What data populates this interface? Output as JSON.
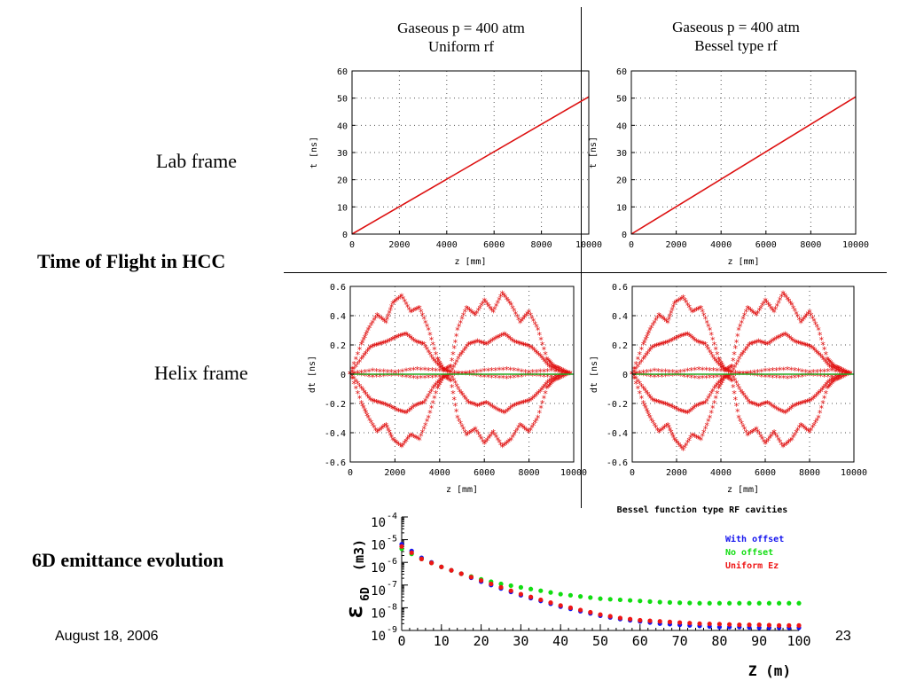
{
  "slide": {
    "labels": {
      "lab_frame": "Lab frame",
      "time_of_flight": "Time of Flight in HCC",
      "helix_frame": "Helix frame",
      "emittance": "6D emittance evolution"
    },
    "titles": {
      "left_line1": "Gaseous p = 400 atm",
      "left_line2": "Uniform rf",
      "right_line1": "Gaseous p = 400 atm",
      "right_line2": "Bessel type rf"
    },
    "footer": {
      "date": "August 18, 2006",
      "page_number": "23"
    }
  },
  "chart_data": [
    {
      "id": "lab-uniform",
      "type": "line",
      "xlabel": "z [mm]",
      "ylabel": "t [ns]",
      "xlim": [
        0,
        10000
      ],
      "ylim": [
        0,
        60
      ],
      "xticks": [
        0,
        2000,
        4000,
        6000,
        8000,
        10000
      ],
      "yticks": [
        0,
        10,
        20,
        30,
        40,
        50,
        60
      ],
      "grid": true,
      "color": "#dd1111",
      "x": [
        0,
        10000
      ],
      "y": [
        0,
        50.5
      ]
    },
    {
      "id": "lab-bessel",
      "type": "line",
      "xlabel": "z [mm]",
      "ylabel": "t [ns]",
      "xlim": [
        0,
        10000
      ],
      "ylim": [
        0,
        60
      ],
      "xticks": [
        0,
        2000,
        4000,
        6000,
        8000,
        10000
      ],
      "yticks": [
        0,
        10,
        20,
        30,
        40,
        50,
        60
      ],
      "grid": true,
      "color": "#dd1111",
      "x": [
        0,
        10000
      ],
      "y": [
        0,
        50.5
      ]
    },
    {
      "id": "helix-uniform",
      "type": "scatter",
      "xlabel": "z [mm]",
      "ylabel": "dt [ns]",
      "xlim": [
        0,
        10000
      ],
      "ylim": [
        -0.6,
        0.6
      ],
      "xticks": [
        0,
        2000,
        4000,
        6000,
        8000,
        10000
      ],
      "yticks": [
        -0.6,
        -0.4,
        -0.2,
        0,
        0.2,
        0.4,
        0.6
      ],
      "grid": true,
      "series": [
        {
          "color": "#e01010",
          "x": [
            0,
            500,
            800,
            1200,
            1600,
            1900,
            2300,
            2700,
            3100,
            3500,
            3900,
            4200,
            4500,
            4800,
            5200,
            5600,
            6000,
            6400,
            6800,
            7200,
            7600,
            8000,
            8400,
            8800,
            9100,
            9400,
            9800
          ],
          "values": [
            0,
            0.2,
            0.3,
            0.4,
            0.35,
            0.48,
            0.53,
            0.42,
            0.45,
            0.3,
            0.1,
            0.02,
            0.05,
            0.3,
            0.45,
            0.4,
            0.5,
            0.42,
            0.55,
            0.47,
            0.35,
            0.42,
            0.3,
            0.1,
            0.05,
            0.03,
            0.0
          ]
        },
        {
          "color": "#e01010",
          "x": [
            0,
            500,
            900,
            1300,
            1700,
            2100,
            2500,
            2900,
            3300,
            3700,
            4100,
            4500,
            4900,
            5300,
            5700,
            6100,
            6500,
            6900,
            7300,
            7700,
            8100,
            8500,
            8900,
            9300,
            9800
          ],
          "values": [
            0,
            0.1,
            0.18,
            0.2,
            0.22,
            0.25,
            0.27,
            0.22,
            0.2,
            0.1,
            0.03,
            0.01,
            0.12,
            0.2,
            0.22,
            0.2,
            0.24,
            0.27,
            0.22,
            0.2,
            0.18,
            0.12,
            0.05,
            0.02,
            0.0
          ]
        },
        {
          "color": "#e01010",
          "x": [
            0,
            1000,
            2000,
            3000,
            4000,
            5000,
            6000,
            7000,
            8000,
            9000,
            10000
          ],
          "values": [
            0,
            0.02,
            0.01,
            0.03,
            0.02,
            0.0,
            0.02,
            0.03,
            0.01,
            0.02,
            0.0
          ]
        },
        {
          "color": "#e01010",
          "x": [
            0,
            1000,
            2000,
            3000,
            4000,
            5000,
            6000,
            7000,
            8000,
            9000,
            10000
          ],
          "values": [
            0,
            -0.02,
            -0.01,
            -0.03,
            -0.02,
            0.0,
            -0.02,
            -0.03,
            -0.01,
            -0.02,
            0.0
          ]
        },
        {
          "color": "#e01010",
          "x": [
            0,
            500,
            900,
            1300,
            1700,
            2100,
            2500,
            2900,
            3300,
            3700,
            4100,
            4500,
            4900,
            5300,
            5700,
            6100,
            6500,
            6900,
            7300,
            7700,
            8100,
            8500,
            8900,
            9300,
            9800
          ],
          "values": [
            0,
            -0.1,
            -0.18,
            -0.2,
            -0.22,
            -0.25,
            -0.27,
            -0.22,
            -0.2,
            -0.1,
            -0.03,
            -0.01,
            -0.12,
            -0.2,
            -0.22,
            -0.2,
            -0.24,
            -0.27,
            -0.22,
            -0.2,
            -0.18,
            -0.12,
            -0.05,
            -0.02,
            0.0
          ]
        },
        {
          "color": "#e01010",
          "x": [
            0,
            500,
            800,
            1200,
            1600,
            1900,
            2300,
            2700,
            3100,
            3500,
            3900,
            4200,
            4500,
            4800,
            5200,
            5600,
            6000,
            6400,
            6800,
            7200,
            7600,
            8000,
            8400,
            8800,
            9100,
            9400,
            9800
          ],
          "values": [
            0,
            -0.2,
            -0.3,
            -0.4,
            -0.35,
            -0.45,
            -0.5,
            -0.42,
            -0.45,
            -0.3,
            -0.1,
            -0.02,
            -0.05,
            -0.3,
            -0.42,
            -0.38,
            -0.48,
            -0.4,
            -0.5,
            -0.45,
            -0.35,
            -0.4,
            -0.3,
            -0.1,
            -0.05,
            -0.03,
            0.0
          ]
        },
        {
          "color": "#22aa22",
          "x": [
            0,
            10000
          ],
          "values": [
            0,
            0
          ]
        }
      ]
    },
    {
      "id": "helix-bessel",
      "type": "scatter",
      "xlabel": "z [mm]",
      "ylabel": "dt [ns]",
      "xlim": [
        0,
        10000
      ],
      "ylim": [
        -0.6,
        0.6
      ],
      "xticks": [
        0,
        2000,
        4000,
        6000,
        8000,
        10000
      ],
      "yticks": [
        -0.6,
        -0.4,
        -0.2,
        0,
        0.2,
        0.4,
        0.6
      ],
      "grid": true,
      "series": [
        {
          "color": "#e01010",
          "x": [
            0,
            500,
            800,
            1200,
            1600,
            1900,
            2300,
            2700,
            3100,
            3500,
            3900,
            4200,
            4500,
            4800,
            5200,
            5600,
            6000,
            6400,
            6800,
            7200,
            7600,
            8000,
            8400,
            8800,
            9100,
            9400,
            9800
          ],
          "values": [
            0,
            0.2,
            0.3,
            0.4,
            0.35,
            0.48,
            0.52,
            0.42,
            0.45,
            0.3,
            0.1,
            0.02,
            0.05,
            0.3,
            0.45,
            0.4,
            0.5,
            0.42,
            0.55,
            0.47,
            0.35,
            0.42,
            0.3,
            0.1,
            0.05,
            0.03,
            0.0
          ]
        },
        {
          "color": "#e01010",
          "x": [
            0,
            500,
            900,
            1300,
            1700,
            2100,
            2500,
            2900,
            3300,
            3700,
            4100,
            4500,
            4900,
            5300,
            5700,
            6100,
            6500,
            6900,
            7300,
            7700,
            8100,
            8500,
            8900,
            9300,
            9800
          ],
          "values": [
            0,
            0.1,
            0.18,
            0.2,
            0.22,
            0.25,
            0.27,
            0.22,
            0.2,
            0.1,
            0.03,
            0.01,
            0.12,
            0.2,
            0.22,
            0.2,
            0.24,
            0.27,
            0.22,
            0.2,
            0.18,
            0.12,
            0.05,
            0.02,
            0.0
          ]
        },
        {
          "color": "#e01010",
          "x": [
            0,
            1000,
            2000,
            3000,
            4000,
            5000,
            6000,
            7000,
            8000,
            9000,
            10000
          ],
          "values": [
            0,
            0.02,
            0.01,
            0.03,
            0.02,
            0.0,
            0.02,
            0.03,
            0.01,
            0.02,
            0.0
          ]
        },
        {
          "color": "#e01010",
          "x": [
            0,
            1000,
            2000,
            3000,
            4000,
            5000,
            6000,
            7000,
            8000,
            9000,
            10000
          ],
          "values": [
            0,
            -0.02,
            -0.01,
            -0.03,
            -0.02,
            0.0,
            -0.02,
            -0.03,
            -0.01,
            -0.02,
            0.0
          ]
        },
        {
          "color": "#e01010",
          "x": [
            0,
            500,
            900,
            1300,
            1700,
            2100,
            2500,
            2900,
            3300,
            3700,
            4100,
            4500,
            4900,
            5300,
            5700,
            6100,
            6500,
            6900,
            7300,
            7700,
            8100,
            8500,
            8900,
            9300,
            9800
          ],
          "values": [
            0,
            -0.1,
            -0.18,
            -0.2,
            -0.22,
            -0.25,
            -0.27,
            -0.22,
            -0.2,
            -0.1,
            -0.03,
            -0.01,
            -0.12,
            -0.2,
            -0.22,
            -0.2,
            -0.24,
            -0.27,
            -0.22,
            -0.2,
            -0.18,
            -0.12,
            -0.05,
            -0.02,
            0.0
          ]
        },
        {
          "color": "#e01010",
          "x": [
            0,
            500,
            800,
            1200,
            1600,
            1900,
            2300,
            2700,
            3100,
            3500,
            3900,
            4200,
            4500,
            4800,
            5200,
            5600,
            6000,
            6400,
            6800,
            7200,
            7600,
            8000,
            8400,
            8800,
            9100,
            9400,
            9800
          ],
          "values": [
            0,
            -0.2,
            -0.3,
            -0.4,
            -0.35,
            -0.45,
            -0.52,
            -0.42,
            -0.45,
            -0.3,
            -0.1,
            -0.02,
            -0.05,
            -0.3,
            -0.42,
            -0.38,
            -0.48,
            -0.4,
            -0.5,
            -0.45,
            -0.35,
            -0.4,
            -0.3,
            -0.1,
            -0.05,
            -0.03,
            0.0
          ]
        },
        {
          "color": "#22aa22",
          "x": [
            0,
            10000
          ],
          "values": [
            0,
            0
          ]
        }
      ]
    },
    {
      "id": "emittance",
      "type": "scatter",
      "title": "Bessel function type RF cavities",
      "xlabel": "Z (m)",
      "ylabel": "ε6D (m3)",
      "ylabel_main": "ε",
      "ylabel_sub": "6D",
      "ylabel_unit": "(m3)",
      "log_y": true,
      "xlim": [
        0,
        100
      ],
      "ylim": [
        -9,
        -4
      ],
      "xticks": [
        0,
        10,
        20,
        30,
        40,
        50,
        60,
        70,
        80,
        90,
        100
      ],
      "yticks": [
        "-4",
        "-5",
        "-6",
        "-7",
        "-8",
        "-9"
      ],
      "ytick_base": "10",
      "legend_position": "top-right",
      "series": [
        {
          "name": "With offset",
          "color": "#1515ee",
          "x": [
            0,
            5,
            10,
            15,
            20,
            25,
            30,
            35,
            40,
            45,
            50,
            55,
            60,
            65,
            70,
            75,
            80,
            85,
            90,
            95,
            100
          ],
          "values": [
            -5.2,
            -5.8,
            -6.2,
            -6.5,
            -6.85,
            -7.15,
            -7.45,
            -7.7,
            -7.95,
            -8.15,
            -8.35,
            -8.5,
            -8.6,
            -8.7,
            -8.75,
            -8.8,
            -8.85,
            -8.85,
            -8.88,
            -8.88,
            -8.88
          ]
        },
        {
          "name": "No offset",
          "color": "#11dd11",
          "x": [
            0,
            5,
            10,
            15,
            20,
            25,
            30,
            35,
            40,
            45,
            50,
            55,
            60,
            65,
            70,
            75,
            80,
            85,
            90,
            95,
            100
          ],
          "values": [
            -5.4,
            -5.85,
            -6.2,
            -6.5,
            -6.75,
            -6.95,
            -7.1,
            -7.25,
            -7.4,
            -7.5,
            -7.6,
            -7.65,
            -7.7,
            -7.75,
            -7.78,
            -7.8,
            -7.8,
            -7.8,
            -7.8,
            -7.8,
            -7.8
          ]
        },
        {
          "name": "Uniform Ez",
          "color": "#ee1515",
          "x": [
            0,
            5,
            10,
            15,
            20,
            25,
            30,
            35,
            40,
            45,
            50,
            55,
            60,
            65,
            70,
            75,
            80,
            85,
            90,
            95,
            100
          ],
          "values": [
            -5.3,
            -5.85,
            -6.2,
            -6.5,
            -6.8,
            -7.1,
            -7.4,
            -7.65,
            -7.9,
            -8.1,
            -8.3,
            -8.45,
            -8.55,
            -8.6,
            -8.65,
            -8.7,
            -8.72,
            -8.75,
            -8.75,
            -8.78,
            -8.78
          ]
        }
      ]
    }
  ]
}
